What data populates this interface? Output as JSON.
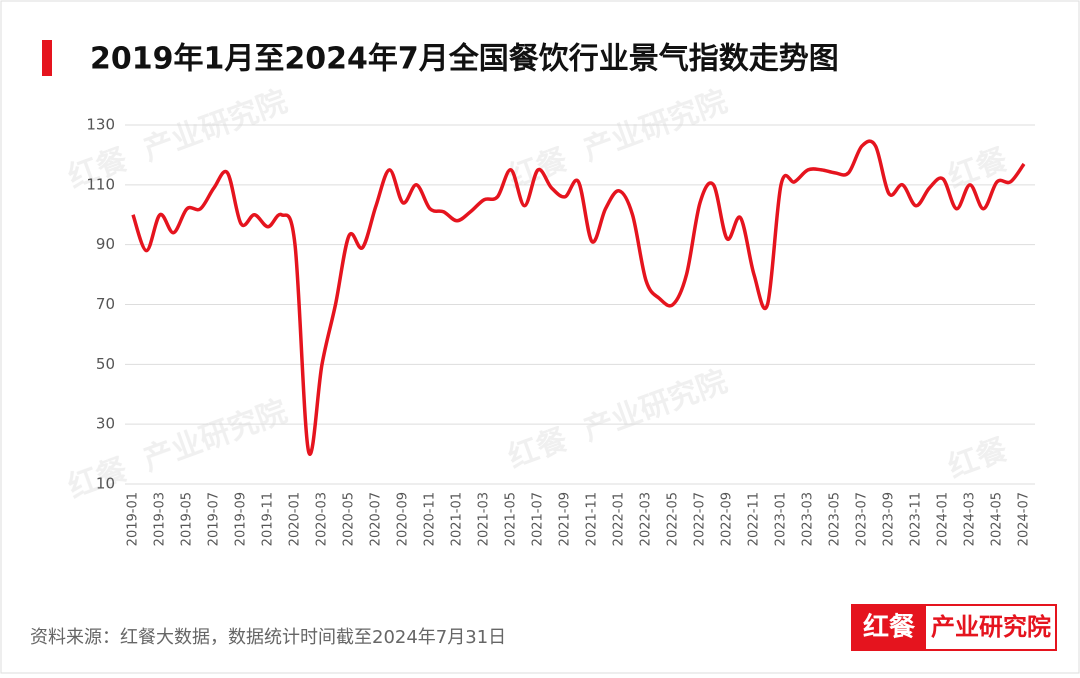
{
  "chart_data": {
    "type": "line",
    "title": "2019年1月至2024年7月全国餐饮行业景气指数走势图",
    "source": "资料来源：红餐大数据，数据统计时间截至2024年7月31日",
    "brand": {
      "logo": "红餐",
      "name": "产业研究院"
    },
    "categories": [
      "2019-01",
      null,
      "2019-03",
      null,
      "2019-05",
      null,
      "2019-07",
      null,
      "2019-09",
      null,
      "2019-11",
      null,
      "2020-01",
      null,
      "2020-03",
      null,
      "2020-05",
      null,
      "2020-07",
      null,
      "2020-09",
      null,
      "2020-11",
      null,
      "2021-01",
      null,
      "2021-03",
      null,
      "2021-05",
      null,
      "2021-07",
      null,
      "2021-09",
      null,
      "2021-11",
      null,
      "2022-01",
      null,
      "2022-03",
      null,
      "2022-05",
      null,
      "2022-07",
      null,
      "2022-09",
      null,
      "2022-11",
      null,
      "2023-01",
      null,
      "2023-03",
      null,
      "2023-05",
      null,
      "2023-07",
      null,
      "2023-09",
      null,
      "2023-11",
      null,
      "2024-01",
      null,
      "2024-03",
      null,
      "2024-05",
      null,
      "2024-07"
    ],
    "values": [
      100,
      88,
      100,
      94,
      102,
      102,
      109,
      114,
      97,
      100,
      96,
      100,
      90,
      21,
      50,
      70,
      93,
      89,
      103,
      115,
      104,
      110,
      102,
      101,
      98,
      101,
      105,
      106,
      115,
      103,
      115,
      109,
      106,
      111,
      91,
      102,
      108,
      100,
      78,
      72,
      70,
      80,
      104,
      110,
      92,
      99,
      80,
      70,
      110,
      111,
      115,
      115,
      114,
      114,
      123,
      123,
      107,
      110,
      103,
      109,
      112,
      102,
      110,
      102,
      111,
      111,
      117
    ],
    "color": "#e5141e",
    "ylim": [
      10,
      130
    ],
    "yticks": [
      10,
      30,
      50,
      70,
      90,
      110,
      130
    ],
    "grid": true
  }
}
